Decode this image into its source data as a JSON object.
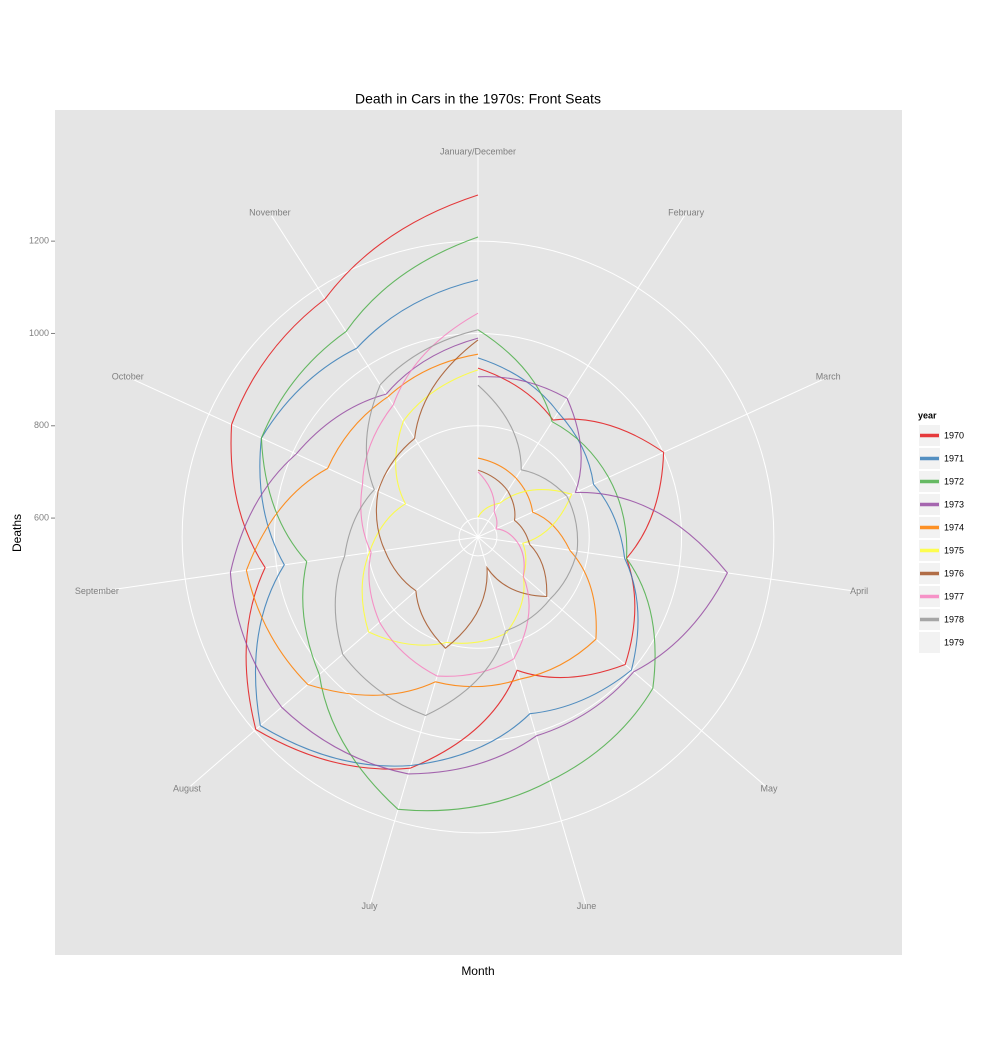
{
  "chart_data": {
    "type": "polar-line",
    "title": "Death in Cars in the 1970s: Front Seats",
    "x_label": "Month",
    "y_label": "Deaths",
    "x": [
      1,
      2,
      3,
      4,
      5,
      6,
      7,
      8,
      9,
      10,
      11,
      12
    ],
    "xlim": [
      1,
      12
    ],
    "xticks": [
      {
        "value": 1,
        "label": "January/December"
      },
      {
        "value": 2,
        "label": "February"
      },
      {
        "value": 3,
        "label": "March"
      },
      {
        "value": 4,
        "label": "April"
      },
      {
        "value": 5,
        "label": "May"
      },
      {
        "value": 6,
        "label": "June"
      },
      {
        "value": 7,
        "label": "July"
      },
      {
        "value": 8,
        "label": "August"
      },
      {
        "value": 9,
        "label": "September"
      },
      {
        "value": 10,
        "label": "October"
      },
      {
        "value": 11,
        "label": "November"
      }
    ],
    "ylim": [
      559,
      1300
    ],
    "yticks": [
      600,
      800,
      1000,
      1200
    ],
    "grid": true,
    "legend_title": "year",
    "legend_position": "right",
    "series": [
      {
        "name": "1970",
        "color": "#e41a1c",
        "values": [
          925,
          860,
          1001,
          884,
          981,
          860,
          1081,
          1196,
          1025,
          1146,
          1172,
          1300
        ]
      },
      {
        "name": "1971",
        "color": "#377eb8",
        "values": [
          947,
          880,
          834,
          880,
          999,
          958,
          1075,
          1183,
          983,
          1075,
          1045,
          1116
        ]
      },
      {
        "name": "1972",
        "color": "#4daf4a",
        "values": [
          1008,
          856,
          870,
          884,
          1060,
          1110,
          1174,
          1014,
          934,
          1075,
          1088,
          1209
        ]
      },
      {
        "name": "1973",
        "color": "#984ea3",
        "values": [
          906,
          916,
          791,
          1105,
          1005,
          1008,
          1094,
          1122,
          1101,
          992,
          927,
          990
        ]
      },
      {
        "name": "1974",
        "color": "#ff7f00",
        "values": [
          730,
          711,
          689,
          760,
          897,
          880,
          886,
          1047,
          1066,
          917,
          920,
          955
        ]
      },
      {
        "name": "1975",
        "color": "#ffff33",
        "values": [
          602,
          646,
          782,
          657,
          689,
          776,
          797,
          873,
          797,
          732,
          858,
          921
        ]
      },
      {
        "name": "1976",
        "color": "#a65628",
        "values": [
          704,
          678,
          646,
          672,
          756,
          628,
          810,
          737,
          763,
          797,
          813,
          986
        ]
      },
      {
        "name": "1977",
        "color": "#f781bf",
        "values": [
          700,
          624,
          602,
          646,
          689,
          834,
          873,
          841,
          793,
          834,
          899,
          1044
        ]
      },
      {
        "name": "1978",
        "color": "#999999",
        "values": [
          888,
          732,
          771,
          776,
          765,
          771,
          962,
          947,
          851,
          806,
          951,
          1008
        ]
      },
      {
        "name": "1979",
        "color": null,
        "values": [
          null,
          null,
          null,
          null,
          null,
          null,
          null,
          null,
          null,
          null,
          null,
          null
        ]
      }
    ]
  }
}
